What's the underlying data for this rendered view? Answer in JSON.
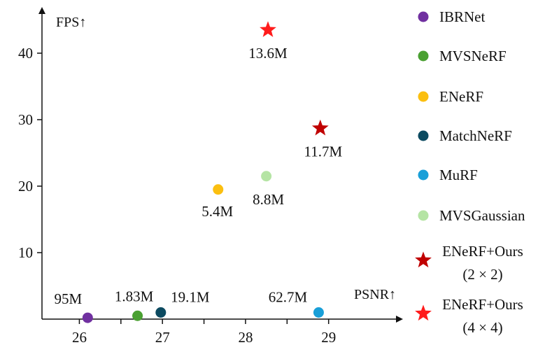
{
  "chart_data": {
    "type": "scatter",
    "xlabel": "PSNR↑",
    "ylabel": "FPS↑",
    "xlim": [
      25.55,
      29.55
    ],
    "ylim": [
      0,
      47
    ],
    "xticks": [
      26,
      27,
      28,
      29
    ],
    "yticks": [
      10,
      20,
      30,
      40
    ],
    "legend_position": "right",
    "series": [
      {
        "name": "IBRNet",
        "marker": "circle",
        "color": "#7030a0",
        "points": [
          {
            "x": 26.1,
            "y": 0.2,
            "label": "95M"
          }
        ]
      },
      {
        "name": "MVSNeRF",
        "marker": "circle",
        "color": "#4aa032",
        "points": [
          {
            "x": 26.7,
            "y": 0.5,
            "label": "1.83M"
          }
        ]
      },
      {
        "name": "ENeRF",
        "marker": "circle",
        "color": "#fbbf10",
        "points": [
          {
            "x": 27.67,
            "y": 19.5,
            "label": "5.4M"
          }
        ]
      },
      {
        "name": "MatchNeRF",
        "marker": "circle",
        "color": "#0c4a60",
        "points": [
          {
            "x": 26.98,
            "y": 1.0,
            "label": "19.1M"
          }
        ]
      },
      {
        "name": "MuRF",
        "marker": "circle",
        "color": "#199fd8",
        "points": [
          {
            "x": 28.88,
            "y": 1.0,
            "label": "62.7M"
          }
        ]
      },
      {
        "name": "MVSGaussian",
        "marker": "circle",
        "color": "#b5e4a4",
        "points": [
          {
            "x": 28.25,
            "y": 21.5,
            "label": "8.8M"
          }
        ]
      },
      {
        "name_lines": [
          "ENeRF+Ours",
          "(2 × 2)"
        ],
        "marker": "star",
        "color": "#c00000",
        "points": [
          {
            "x": 28.9,
            "y": 28.7,
            "label": "11.7M"
          }
        ]
      },
      {
        "name_lines": [
          "ENeRF+Ours",
          "(4 × 4)"
        ],
        "marker": "star",
        "color": "#ff1c1c",
        "points": [
          {
            "x": 28.27,
            "y": 43.5,
            "label": "13.6M"
          }
        ]
      }
    ]
  }
}
